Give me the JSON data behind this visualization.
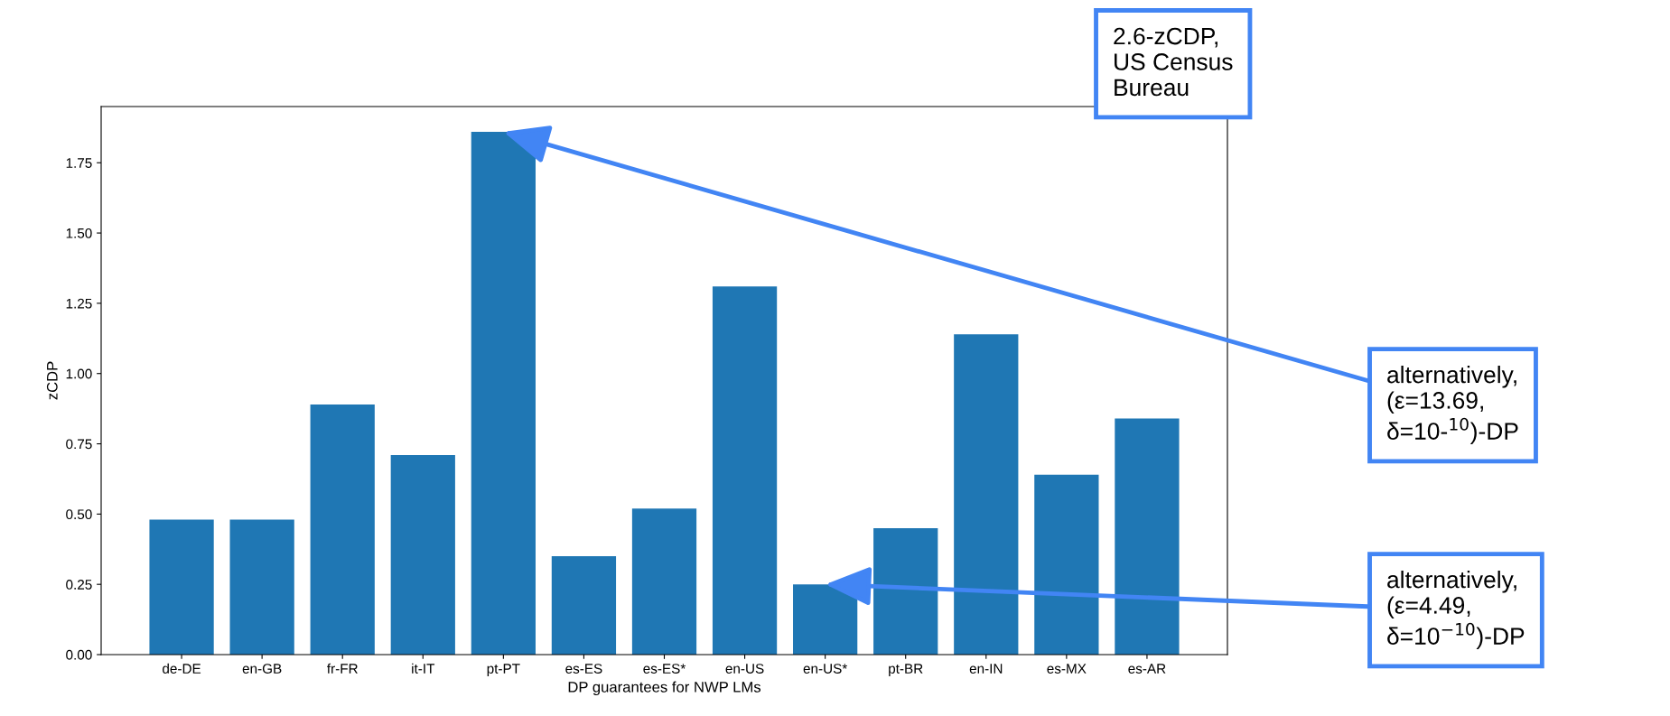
{
  "chart_data": {
    "type": "bar",
    "xlabel": "DP guarantees for NWP LMs",
    "ylabel": "zCDP",
    "categories": [
      "de-DE",
      "en-GB",
      "fr-FR",
      "it-IT",
      "pt-PT",
      "es-ES",
      "es-ES*",
      "en-US",
      "en-US*",
      "pt-BR",
      "en-IN",
      "es-MX",
      "es-AR"
    ],
    "values": [
      0.48,
      0.48,
      0.89,
      0.71,
      1.86,
      0.35,
      0.52,
      1.31,
      0.25,
      0.45,
      1.14,
      0.64,
      0.84
    ],
    "color": "#1f77b4",
    "ylim": [
      0,
      1.95
    ],
    "yticks": [
      {
        "value": 0,
        "label": "0.00"
      },
      {
        "value": 0.25,
        "label": "0.25"
      },
      {
        "value": 0.5,
        "label": "0.50"
      },
      {
        "value": 0.75,
        "label": "0.75"
      },
      {
        "value": 1,
        "label": "1.00"
      },
      {
        "value": 1.25,
        "label": "1.25"
      },
      {
        "value": 1.5,
        "label": "1.50"
      },
      {
        "value": 1.75,
        "label": "1.75"
      }
    ],
    "grid": false,
    "annotations": [
      "2.6-zCDP,\nUS Census\nBureau",
      {
        "text": "alternatively,\n(ε=13.69,\nδ=10-$^{10}$)-DP",
        "x": "pt-PT",
        "y": 1.86
      },
      {
        "text": "alternatively,\n(ε=4.49,\nδ=10$^{−10}$)-DP",
        "x": "en-US*",
        "y": 0.25
      }
    ]
  }
}
